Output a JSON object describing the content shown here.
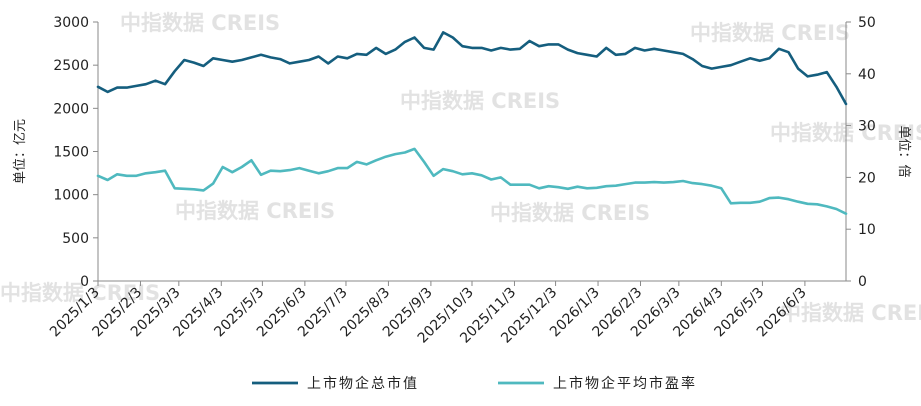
{
  "chart_data": {
    "type": "line",
    "title": "",
    "y_left": {
      "label": "单位：亿元",
      "range": [
        0,
        3000
      ],
      "ticks": [
        0,
        500,
        1000,
        1500,
        2000,
        2500,
        3000
      ]
    },
    "y_right": {
      "label": "单位：倍",
      "range": [
        0,
        50
      ],
      "ticks": [
        0,
        10,
        20,
        30,
        40,
        50
      ]
    },
    "x_ticks": [
      "2025/1/3",
      "2025/2/3",
      "2025/3/3",
      "2025/4/3",
      "2025/5/3",
      "2025/6/3",
      "2025/7/3",
      "2025/8/3",
      "2025/9/3",
      "2025/10/3",
      "2025/11/3",
      "2025/12/3",
      "2026/1/3",
      "2026/2/3",
      "2026/3/3",
      "2026/4/3",
      "2026/5/3",
      "2026/6/3"
    ],
    "grid": false,
    "legend_position": "bottom",
    "watermark": "中指数据 CREIS",
    "x": [
      "2025-01-03",
      "2025-01-10",
      "2025-01-17",
      "2025-01-24",
      "2025-01-31",
      "2025-02-07",
      "2025-02-14",
      "2025-02-21",
      "2025-02-28",
      "2025-03-07",
      "2025-03-14",
      "2025-03-21",
      "2025-03-28",
      "2025-04-04",
      "2025-04-11",
      "2025-04-18",
      "2025-04-25",
      "2025-05-02",
      "2025-05-09",
      "2025-05-16",
      "2025-05-23",
      "2025-05-30",
      "2025-06-06",
      "2025-06-13",
      "2025-06-20",
      "2025-06-27",
      "2025-07-04",
      "2025-07-11",
      "2025-07-18",
      "2025-07-25",
      "2025-08-01",
      "2025-08-08",
      "2025-08-15",
      "2025-08-22",
      "2025-08-29",
      "2025-09-05",
      "2025-09-12",
      "2025-09-19",
      "2025-09-26",
      "2025-10-03",
      "2025-10-10",
      "2025-10-17",
      "2025-10-24",
      "2025-10-31",
      "2025-11-07",
      "2025-11-14",
      "2025-11-21",
      "2025-11-28",
      "2025-12-05",
      "2025-12-12",
      "2025-12-19",
      "2025-12-26",
      "2026-01-02",
      "2026-01-09",
      "2026-01-16",
      "2026-01-23",
      "2026-01-30",
      "2026-02-06",
      "2026-02-13",
      "2026-02-20",
      "2026-02-27",
      "2026-03-06",
      "2026-03-13",
      "2026-03-20",
      "2026-03-27",
      "2026-04-03",
      "2026-04-10",
      "2026-04-17",
      "2026-04-24",
      "2026-05-01",
      "2026-05-08",
      "2026-05-15",
      "2026-05-22",
      "2026-05-29",
      "2026-06-05",
      "2026-06-12",
      "2026-06-19",
      "2026-06-26",
      "2026-07-03"
    ],
    "series": [
      {
        "name": "上市物企总市值",
        "axis": "left",
        "color": "#155e7e",
        "values": [
          2250,
          2190,
          2240,
          2240,
          2260,
          2280,
          2320,
          2280,
          2430,
          2560,
          2530,
          2490,
          2580,
          2560,
          2540,
          2560,
          2590,
          2620,
          2590,
          2570,
          2520,
          2540,
          2560,
          2600,
          2520,
          2600,
          2580,
          2630,
          2620,
          2700,
          2630,
          2680,
          2770,
          2820,
          2700,
          2680,
          2880,
          2820,
          2720,
          2700,
          2700,
          2670,
          2700,
          2680,
          2690,
          2780,
          2720,
          2740,
          2740,
          2680,
          2640,
          2620,
          2600,
          2700,
          2620,
          2630,
          2700,
          2670,
          2690,
          2670,
          2650,
          2630,
          2570,
          2490,
          2460,
          2480,
          2500,
          2540,
          2580,
          2550,
          2580,
          2690,
          2650,
          2460,
          2370,
          2390,
          2420,
          2250,
          2050
        ]
      },
      {
        "name": "上市物企平均市盈率",
        "axis": "right",
        "color": "#4fb9bf",
        "values": [
          20.3,
          19.5,
          20.6,
          20.3,
          20.3,
          20.8,
          21.0,
          21.3,
          17.9,
          17.8,
          17.7,
          17.5,
          18.8,
          22.0,
          21.0,
          22.0,
          23.3,
          20.5,
          21.3,
          21.2,
          21.4,
          21.8,
          21.3,
          20.8,
          21.2,
          21.8,
          21.8,
          23.0,
          22.5,
          23.3,
          24.0,
          24.5,
          24.8,
          25.5,
          23.0,
          20.3,
          21.6,
          21.2,
          20.6,
          20.8,
          20.4,
          19.6,
          20.0,
          18.6,
          18.6,
          18.6,
          17.9,
          18.3,
          18.1,
          17.8,
          18.2,
          17.9,
          18.0,
          18.3,
          18.4,
          18.7,
          19.0,
          19.0,
          19.1,
          19.0,
          19.1,
          19.3,
          18.9,
          18.7,
          18.4,
          17.9,
          15.0,
          15.1,
          15.1,
          15.3,
          16.0,
          16.1,
          15.8,
          15.3,
          14.9,
          14.8,
          14.4,
          13.9,
          13.0
        ]
      }
    ]
  }
}
